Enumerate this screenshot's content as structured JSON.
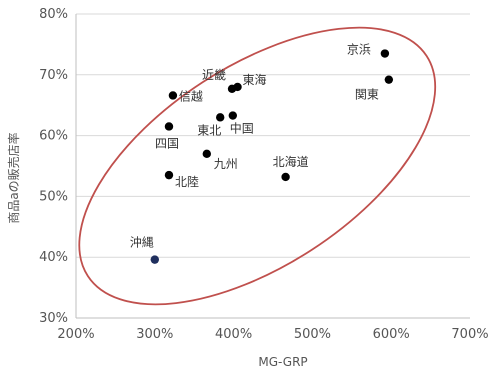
{
  "chart_data": {
    "type": "scatter",
    "xlabel": "MG-GRP",
    "ylabel": "商品aの販売店率",
    "xlim": [
      200,
      700
    ],
    "ylim": [
      30,
      80
    ],
    "x_ticks": [
      200,
      300,
      400,
      500,
      600,
      700
    ],
    "y_ticks": [
      30,
      40,
      50,
      60,
      70,
      80
    ],
    "x_tick_labels": [
      "200%",
      "300%",
      "400%",
      "500%",
      "600%",
      "700%"
    ],
    "y_tick_labels": [
      "30%",
      "40%",
      "50%",
      "60%",
      "70%",
      "80%"
    ],
    "grid": true,
    "points": [
      {
        "label": "京浜",
        "x": 592,
        "y": 73.5
      },
      {
        "label": "関東",
        "x": 597,
        "y": 69.2
      },
      {
        "label": "近畿",
        "x": 398,
        "y": 67.7
      },
      {
        "label": "東海",
        "x": 405,
        "y": 68.0
      },
      {
        "label": "信越",
        "x": 323,
        "y": 66.6
      },
      {
        "label": "東北",
        "x": 383,
        "y": 63.0
      },
      {
        "label": "中国",
        "x": 399,
        "y": 63.3
      },
      {
        "label": "四国",
        "x": 318,
        "y": 61.5
      },
      {
        "label": "九州",
        "x": 366,
        "y": 57.0
      },
      {
        "label": "北陸",
        "x": 318,
        "y": 53.5
      },
      {
        "label": "北海道",
        "x": 466,
        "y": 53.2
      },
      {
        "label": "沖縄",
        "x": 300,
        "y": 39.6
      }
    ],
    "colors": {
      "point": "#000000",
      "point_highlight": "#1f2f5e",
      "ellipse": "#c0504d",
      "grid": "#d9d9d9",
      "axis": "#bfbfbf"
    }
  }
}
